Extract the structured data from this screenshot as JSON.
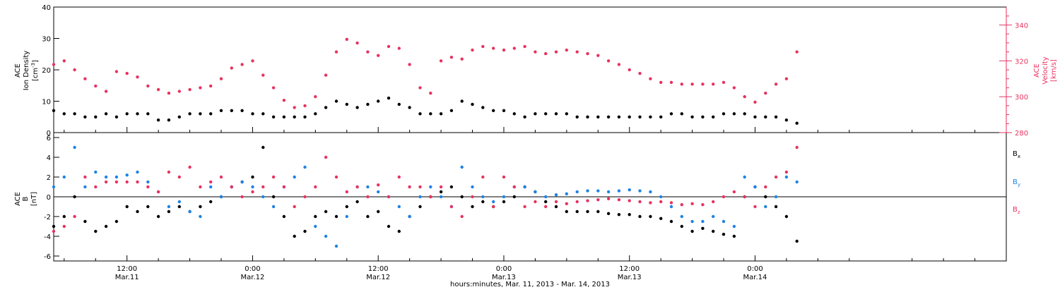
{
  "colors": {
    "black": "#000000",
    "pink": "#e8325f",
    "blue": "#1e82e6",
    "frame": "#000000",
    "velocity_axis": "#e8325f"
  },
  "xaxis": {
    "caption": "hours:minutes, Mar. 11, 2013 - Mar. 14, 2013",
    "range_hours": [
      5,
      96
    ],
    "ticks": [
      {
        "hour": 12,
        "time": "12:00",
        "date": "Mar.11"
      },
      {
        "hour": 24,
        "time": "0:00",
        "date": "Mar.12"
      },
      {
        "hour": 36,
        "time": "12:00",
        "date": "Mar.12"
      },
      {
        "hour": 48,
        "time": "0:00",
        "date": "Mar.13"
      },
      {
        "hour": 60,
        "time": "12:00",
        "date": "Mar.13"
      },
      {
        "hour": 72,
        "time": "0:00",
        "date": "Mar.14"
      }
    ]
  },
  "top_panel": {
    "left_label_1": "ACE",
    "left_label_2": "Ion Density",
    "left_label_unit": "[cm",
    "left_label_unit_sup": "-3",
    "left_label_unit_end": "]",
    "right_label_1": "ACE",
    "right_label_2": "Velocity",
    "right_label_unit": "[km/s]",
    "left_ticks": [
      "0",
      "10",
      "20",
      "30",
      "40"
    ],
    "right_ticks": [
      "280",
      "300",
      "320",
      "340"
    ]
  },
  "bottom_panel": {
    "left_label_1": "ACE",
    "left_label_2": "B",
    "left_label_unit": "[nT]",
    "left_ticks": [
      "-6",
      "-4",
      "-2",
      "0",
      "2",
      "4",
      "6"
    ],
    "legend": [
      {
        "name": "B",
        "sub": "x",
        "color": "#000000"
      },
      {
        "name": "B",
        "sub": "y",
        "color": "#1e82e6"
      },
      {
        "name": "B",
        "sub": "z",
        "color": "#e8325f"
      }
    ]
  },
  "chart_data": [
    {
      "type": "scatter",
      "panel": "top",
      "x_unit": "hours since 2013-03-11 00:00",
      "xlim": [
        5,
        96
      ],
      "ylim_density": [
        0,
        40
      ],
      "ylim_velocity": [
        280,
        350
      ],
      "series": [
        {
          "name": "Ion Density",
          "axis": "left",
          "color": "#000000",
          "x": [
            5,
            6,
            7,
            8,
            9,
            10,
            11,
            12,
            13,
            14,
            15,
            16,
            17,
            18,
            19,
            20,
            21,
            22,
            23,
            24,
            25,
            26,
            27,
            28,
            29,
            30,
            31,
            32,
            33,
            34,
            35,
            36,
            37,
            38,
            39,
            40,
            41,
            42,
            43,
            44,
            45,
            46,
            47,
            48,
            49,
            50,
            51,
            52,
            53,
            54,
            55,
            56,
            57,
            58,
            59,
            60,
            61,
            62,
            63,
            64,
            65,
            66,
            67,
            68,
            69,
            70,
            71,
            72,
            73,
            74,
            75,
            76
          ],
          "y": [
            7,
            6,
            6,
            5,
            5,
            6,
            5,
            6,
            6,
            6,
            4,
            4,
            5,
            6,
            6,
            6,
            7,
            7,
            7,
            6,
            6,
            5,
            5,
            5,
            5,
            6,
            8,
            10,
            9,
            8,
            9,
            10,
            11,
            9,
            8,
            6,
            6,
            6,
            7,
            10,
            9,
            8,
            7,
            7,
            6,
            5,
            6,
            6,
            6,
            6,
            5,
            5,
            5,
            5,
            5,
            5,
            5,
            5,
            5,
            6,
            6,
            5,
            5,
            5,
            6,
            6,
            6,
            5,
            5,
            5,
            4,
            3
          ]
        },
        {
          "name": "Velocity",
          "axis": "right",
          "color": "#e8325f",
          "x": [
            5,
            6,
            7,
            8,
            9,
            10,
            11,
            12,
            13,
            14,
            15,
            16,
            17,
            18,
            19,
            20,
            21,
            22,
            23,
            24,
            25,
            26,
            27,
            28,
            29,
            30,
            31,
            32,
            33,
            34,
            35,
            36,
            37,
            38,
            39,
            40,
            41,
            42,
            43,
            44,
            45,
            46,
            47,
            48,
            49,
            50,
            51,
            52,
            53,
            54,
            55,
            56,
            57,
            58,
            59,
            60,
            61,
            62,
            63,
            64,
            65,
            66,
            67,
            68,
            69,
            70,
            71,
            72,
            73,
            74,
            75,
            76
          ],
          "y": [
            318,
            320,
            315,
            310,
            306,
            303,
            314,
            313,
            311,
            306,
            304,
            302,
            303,
            304,
            305,
            306,
            310,
            316,
            318,
            320,
            312,
            305,
            298,
            294,
            295,
            300,
            312,
            325,
            332,
            330,
            325,
            323,
            328,
            327,
            318,
            305,
            302,
            320,
            322,
            321,
            326,
            328,
            327,
            326,
            327,
            328,
            325,
            324,
            325,
            326,
            325,
            324,
            323,
            320,
            318,
            315,
            313,
            310,
            308,
            308,
            307,
            307,
            307,
            307,
            308,
            305,
            300,
            297,
            302,
            307,
            310,
            325
          ]
        }
      ]
    },
    {
      "type": "scatter",
      "panel": "bottom",
      "x_unit": "hours since 2013-03-11 00:00",
      "xlim": [
        5,
        96
      ],
      "ylim": [
        -6.5,
        6.5
      ],
      "series": [
        {
          "name": "Bx",
          "color": "#000000",
          "x": [
            5,
            6,
            7,
            8,
            9,
            10,
            11,
            12,
            13,
            14,
            15,
            16,
            17,
            18,
            19,
            20,
            21,
            22,
            23,
            24,
            25,
            26,
            27,
            28,
            29,
            30,
            31,
            32,
            33,
            34,
            35,
            36,
            37,
            38,
            39,
            40,
            41,
            42,
            43,
            44,
            45,
            46,
            47,
            48,
            49,
            50,
            51,
            52,
            53,
            54,
            55,
            56,
            57,
            58,
            59,
            60,
            61,
            62,
            63,
            64,
            65,
            66,
            67,
            68,
            69,
            70,
            71,
            72,
            73,
            74,
            75,
            76
          ],
          "y": [
            -3,
            -2,
            0,
            -2.5,
            -3.5,
            -3,
            -2.5,
            -1,
            -1.5,
            -1,
            -2,
            -1.5,
            -1,
            -1.5,
            -1,
            -0.5,
            0,
            1,
            1.5,
            2,
            5,
            0,
            -2,
            -4,
            -3.5,
            -2,
            -1.5,
            -2,
            -1,
            -0.5,
            -2,
            -1.5,
            -3,
            -3.5,
            -2,
            -1,
            0,
            0.5,
            1,
            0,
            -1,
            -0.5,
            -1,
            -0.5,
            0,
            1,
            0.5,
            -0.5,
            -1,
            -1.5,
            -1.5,
            -1.5,
            -1.5,
            -1.7,
            -1.8,
            -1.8,
            -2,
            -2,
            -2.2,
            -2.5,
            -3,
            -3.5,
            -3.2,
            -3.5,
            -3.8,
            -4,
            0,
            1,
            0,
            -1,
            -2,
            -4.5
          ]
        },
        {
          "name": "By",
          "color": "#1e82e6",
          "x": [
            5,
            6,
            7,
            8,
            9,
            10,
            11,
            12,
            13,
            14,
            15,
            16,
            17,
            18,
            19,
            20,
            21,
            22,
            23,
            24,
            25,
            26,
            27,
            28,
            29,
            30,
            31,
            32,
            33,
            34,
            35,
            36,
            37,
            38,
            39,
            40,
            41,
            42,
            43,
            44,
            45,
            46,
            47,
            48,
            49,
            50,
            51,
            52,
            53,
            54,
            55,
            56,
            57,
            58,
            59,
            60,
            61,
            62,
            63,
            64,
            65,
            66,
            67,
            68,
            69,
            70,
            71,
            72,
            73,
            74,
            75,
            76
          ],
          "y": [
            1,
            2,
            5,
            1,
            2.5,
            2,
            2,
            2.2,
            2.5,
            1.5,
            0.5,
            -1,
            -0.5,
            -1.5,
            -2,
            1,
            0,
            1,
            1.5,
            1,
            0,
            -1,
            1,
            2,
            3,
            -3,
            -4,
            -5,
            -2,
            1,
            1,
            0.5,
            0,
            -1,
            -2,
            0,
            1,
            0,
            -1,
            3,
            1,
            0,
            -0.5,
            0,
            1,
            1,
            0.5,
            0,
            0.2,
            0.3,
            0.5,
            0.6,
            0.6,
            0.5,
            0.6,
            0.7,
            0.6,
            0.5,
            0,
            -1,
            -2,
            -2.5,
            -2.5,
            -2,
            -2.5,
            -3,
            2,
            1,
            -1,
            0,
            2,
            1.5
          ]
        },
        {
          "name": "Bz",
          "color": "#e8325f",
          "x": [
            5,
            6,
            7,
            8,
            9,
            10,
            11,
            12,
            13,
            14,
            15,
            16,
            17,
            18,
            19,
            20,
            21,
            22,
            23,
            24,
            25,
            26,
            27,
            28,
            29,
            30,
            31,
            32,
            33,
            34,
            35,
            36,
            37,
            38,
            39,
            40,
            41,
            42,
            43,
            44,
            45,
            46,
            47,
            48,
            49,
            50,
            51,
            52,
            53,
            54,
            55,
            56,
            57,
            58,
            59,
            60,
            61,
            62,
            63,
            64,
            65,
            66,
            67,
            68,
            69,
            70,
            71,
            72,
            73,
            74,
            75,
            76
          ],
          "y": [
            -3.5,
            -3,
            -2,
            2,
            1,
            1.5,
            1.5,
            1.5,
            1.5,
            1,
            0.5,
            2.5,
            2,
            3,
            1,
            1.5,
            2,
            1,
            0,
            0.5,
            1,
            2,
            1,
            -1,
            0,
            1,
            4,
            2,
            0.5,
            1,
            0,
            1.2,
            0,
            2,
            1,
            1,
            0,
            1,
            -1,
            -2,
            0,
            2,
            -1,
            2,
            1,
            -1,
            -0.5,
            -1,
            -0.5,
            -0.7,
            -0.5,
            -0.4,
            -0.3,
            -0.2,
            -0.3,
            -0.4,
            -0.5,
            -0.6,
            -0.5,
            -0.6,
            -0.8,
            -0.7,
            -0.8,
            -0.5,
            0,
            0.5,
            0,
            -1,
            1,
            2,
            2.5,
            5
          ]
        }
      ]
    }
  ]
}
